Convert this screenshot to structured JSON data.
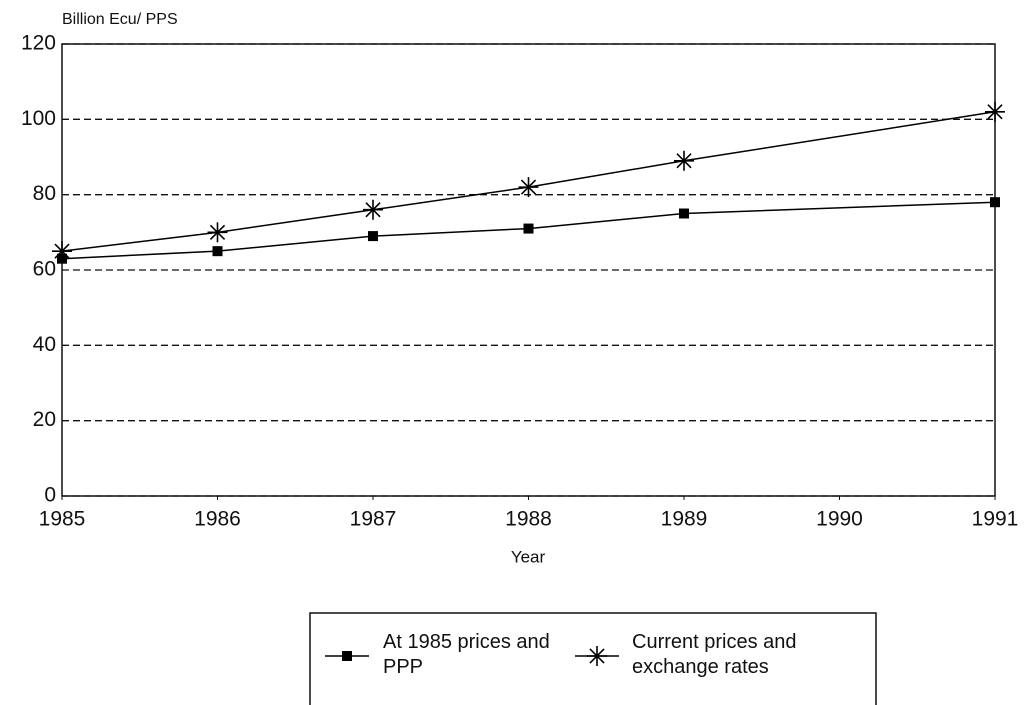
{
  "chart_data": {
    "type": "line",
    "y_label": "Billion Ecu/ PPS",
    "x_label": "Year",
    "x": [
      1985,
      1986,
      1987,
      1988,
      1989,
      1991
    ],
    "xlim": [
      1985,
      1991
    ],
    "xticks": [
      1985,
      1986,
      1987,
      1988,
      1989,
      1990,
      1991
    ],
    "ylim": [
      0,
      120
    ],
    "yticks": [
      0,
      20,
      40,
      60,
      80,
      100,
      120
    ],
    "grid": true,
    "legend": "bottom",
    "series": [
      {
        "name": "At 1985 prices and PPP",
        "color": "#000000",
        "marker": "square",
        "values": [
          63,
          65,
          69,
          71,
          75,
          78
        ]
      },
      {
        "name": "Current prices and exchange rates",
        "color": "#000000",
        "marker": "star",
        "values": [
          65,
          70,
          76,
          82,
          89,
          102
        ]
      }
    ]
  }
}
